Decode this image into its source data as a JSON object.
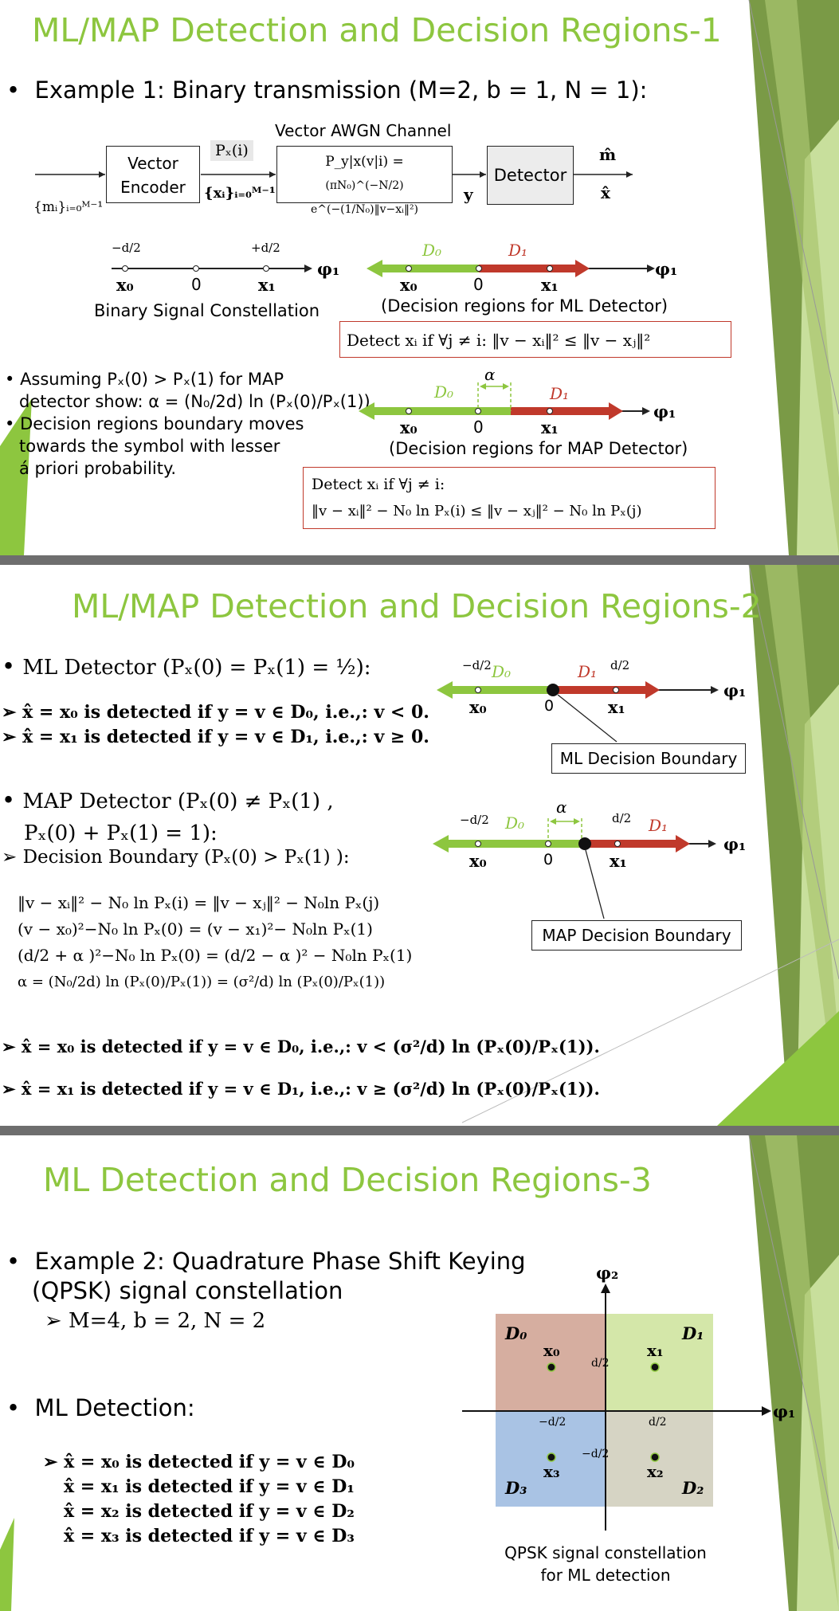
{
  "colors": {
    "title": "#8dc63f",
    "d0": "#8dc63f",
    "d1": "#c0392b",
    "border_red": "#c0392b",
    "q0": "#d6aea0",
    "q1": "#d4e7a9",
    "q2": "#d6d4c4",
    "q3": "#a9c3e4",
    "slide_sep": "#6e6e6e",
    "corner_dark": "#7a9a46",
    "corner_light": "#c8df9c"
  },
  "slide1": {
    "title": "ML/MAP Detection and Decision Regions-1",
    "bullet1": "Example 1: Binary transmission (M=2, b = 1, N = 1):",
    "block": {
      "channel_label": "Vector AWGN Channel",
      "encoder_line1": "Vector",
      "encoder_line2": "Encoder",
      "px": "Pₓ(i)",
      "channel_line1": "P_y|x(v|i) =",
      "channel_line2": "(πN₀)^(−N/2) e^(−(1/N₀)‖v−xᵢ‖²)",
      "detector": "Detector",
      "m_in": "{mᵢ}ᵢ₌₀ᴹ⁻¹",
      "x_set": "{xᵢ}ᵢ₌₀ᴹ⁻¹",
      "y_label": "y",
      "m_hat": "m̂",
      "x_hat": "x̂"
    },
    "constellation": {
      "neg_d2": "−d/2",
      "pos_d2": "+d/2",
      "x0": "x₀",
      "zero": "0",
      "x1": "x₁",
      "phi": "φ₁",
      "caption": "Binary Signal Constellation"
    },
    "ml_regions": {
      "d0": "D₀",
      "d1": "D₁",
      "x0": "x₀",
      "zero": "0",
      "x1": "x₁",
      "phi": "φ₁",
      "caption": "(Decision regions for  ML Detector)"
    },
    "ml_rule": "Detect xᵢ if ∀j ≠ i:   ‖v − xᵢ‖² ≤ ‖v − xⱼ‖²",
    "bullets": [
      "Assuming Pₓ(0) > Pₓ(1) for MAP",
      "detector show: α = (N₀/2d) ln (Pₓ(0)/Pₓ(1)).",
      "Decision regions boundary moves",
      "towards the symbol with lesser",
      "á priori probability."
    ],
    "map_regions": {
      "alpha": "α",
      "d0": "D₀",
      "d1": "D₁",
      "x0": "x₀",
      "zero": "0",
      "x1": "x₁",
      "phi": "φ₁",
      "caption": "(Decision regions for  MAP Detector)"
    },
    "map_rule_line1": "Detect xᵢ if ∀j ≠ i:",
    "map_rule_line2": "‖v − xᵢ‖² − N₀ ln Pₓ(i) ≤ ‖v − xⱼ‖² − N₀ ln Pₓ(j)"
  },
  "slide2": {
    "title": "ML/MAP Detection and Decision Regions-2",
    "ml_heading": "ML Detector (Pₓ(0) = Pₓ(1) = ½):",
    "ml_rule0": "➢ x̂ = x₀ is detected if y = v ∈ D₀, i.e.,: v < 0.",
    "ml_rule1": "➢ x̂ = x₁ is detected if y = v ∈ D₁, i.e.,: v ≥ 0.",
    "ml_diagram": {
      "neg_d2": "−d/2",
      "d0": "D₀",
      "d1": "D₁",
      "pos_d2": "d/2",
      "x0": "x₀",
      "zero": "0",
      "x1": "x₁",
      "phi": "φ₁",
      "boundary": "ML Decision Boundary"
    },
    "map_heading_line1": "MAP Detector (Pₓ(0) ≠ Pₓ(1) ,",
    "map_heading_line2": "Pₓ(0) + Pₓ(1) = 1):",
    "map_boundary_heading": "➢ Decision Boundary (Pₓ(0) > Pₓ(1) ):",
    "equations": [
      "‖v − xᵢ‖² − N₀ ln Pₓ(i) = ‖v − xⱼ‖² − N₀ln Pₓ(j)",
      "(v − x₀)²−N₀ ln Pₓ(0) = (v − x₁)²− N₀ln Pₓ(1)",
      "(d/2 + α )²−N₀ ln Pₓ(0) = (d/2 − α )² − N₀ln Pₓ(1)",
      "α = (N₀/2d) ln (Pₓ(0)/Pₓ(1)) = (σ²/d) ln (Pₓ(0)/Pₓ(1))"
    ],
    "map_diagram": {
      "neg_d2": "−d/2",
      "d0": "D₀",
      "alpha": "α",
      "pos_d2": "d/2",
      "d1": "D₁",
      "x0": "x₀",
      "zero": "0",
      "x1": "x₁",
      "phi": "φ₁",
      "boundary": "MAP Decision Boundary"
    },
    "map_rule0": "➢ x̂ = x₀ is detected if y = v ∈ D₀, i.e.,: v < (σ²/d) ln (Pₓ(0)/Pₓ(1)).",
    "map_rule1": "➢ x̂ = x₁ is detected if y = v ∈ D₁, i.e.,: v ≥ (σ²/d) ln (Pₓ(0)/Pₓ(1))."
  },
  "slide3": {
    "title": "ML Detection and Decision Regions-3",
    "bullet1_line1": "Example 2: Quadrature Phase Shift Keying",
    "bullet1_line2": "(QPSK) signal constellation",
    "sub1": "➢ M=4, b = 2, N = 2",
    "bullet2": "ML Detection:",
    "rules": [
      "➢ x̂ = x₀ is detected if y = v ∈ D₀",
      "x̂ = x₁ is detected if y = v ∈ D₁",
      "x̂ = x₂ is detected if y = v ∈ D₂",
      "x̂ = x₃ is detected if y = v ∈ D₃"
    ],
    "qpsk": {
      "phi1": "φ₁",
      "phi2": "φ₂",
      "D0": "D₀",
      "D1": "D₁",
      "D2": "D₂",
      "D3": "D₃",
      "x0": "x₀",
      "x1": "x₁",
      "x2": "x₂",
      "x3": "x₃",
      "d2_up": "d/2",
      "d2_right": "d/2",
      "neg_d2_left": "−d/2",
      "neg_d2_down": "−d/2",
      "caption_line1": "QPSK signal constellation",
      "caption_line2": "for ML detection"
    }
  }
}
